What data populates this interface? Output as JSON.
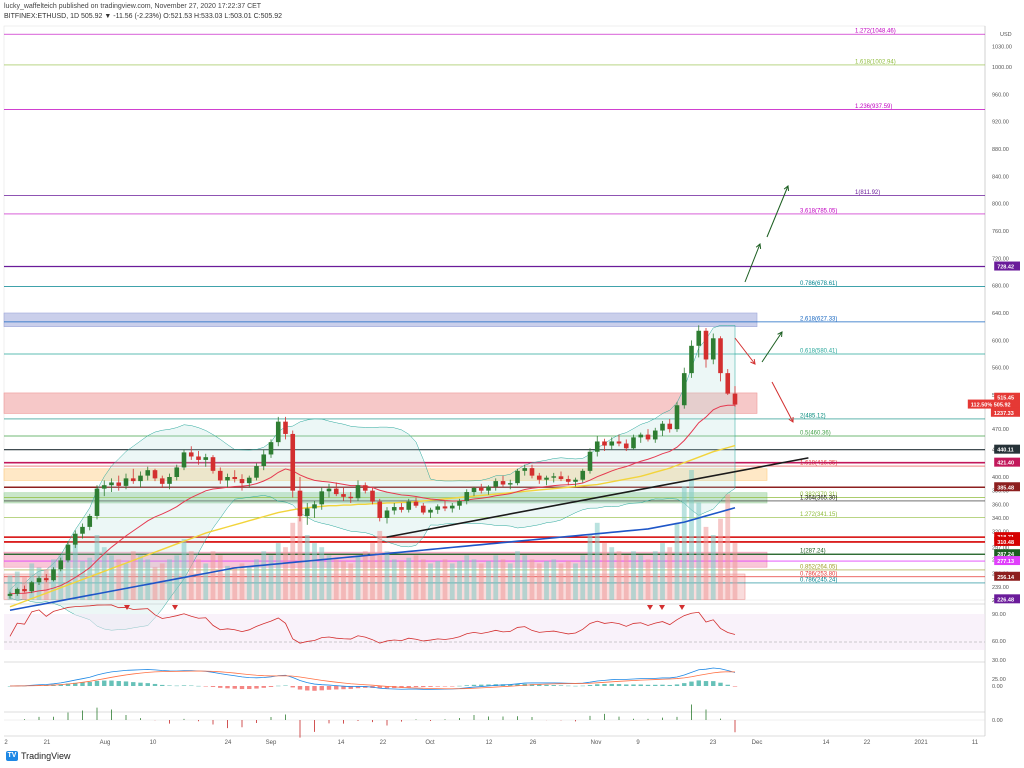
{
  "header": {
    "line1": "lucky_waffelteich published on tradingview.com, November 27, 2020 17:22:37 CET",
    "line2": "BITFINEX:ETHUSD, 1D 505.92 ▼ -11.56 (-2.23%) O:521.53 H:533.03 L:503.01 C:505.92"
  },
  "brand": {
    "name": "TradingView",
    "mark": "TV"
  },
  "price_axis": {
    "unit": "USD",
    "ticks": [
      "1030.00",
      "1000.00",
      "960.00",
      "920.00",
      "880.00",
      "840.00",
      "800.00",
      "760.00",
      "720.00",
      "680.00",
      "640.00",
      "600.00",
      "560.00",
      "520.00",
      "470.00",
      "440.00",
      "400.00",
      "380.00",
      "360.00",
      "340.00",
      "320.00",
      "297.00",
      "279.00",
      "259.00",
      "239.00",
      "220.00"
    ]
  },
  "time_axis": {
    "labels": [
      "2",
      "21",
      "Aug",
      "10",
      "24",
      "Sep",
      "14",
      "22",
      "Oct",
      "12",
      "26",
      "Nov",
      "9",
      "23",
      "Dec",
      "14",
      "22",
      "2021",
      "11"
    ]
  },
  "fib_levels": [
    {
      "label": "1.272(1048.46)",
      "price": 1048,
      "color": "#c000c0"
    },
    {
      "label": "1.618(1002.94)",
      "price": 1003,
      "color": "#8fbc3c"
    },
    {
      "label": "1.236(937.59)",
      "price": 938,
      "color": "#c000c0"
    },
    {
      "label": "1(811.92)",
      "price": 812,
      "color": "#6a1b9a"
    },
    {
      "label": "3.618(785.05)",
      "price": 785,
      "color": "#c000c0"
    },
    {
      "label": "0.786(678.61)",
      "price": 679,
      "color": "#00838f"
    },
    {
      "label": "2.618(627.33)",
      "price": 627,
      "color": "#1565c0"
    },
    {
      "label": "0.618(580.41)",
      "price": 580,
      "color": "#26a69a"
    },
    {
      "label": "2(485.12)",
      "price": 485,
      "color": "#00897b"
    },
    {
      "label": "0.5(460.36)",
      "price": 460,
      "color": "#43a047"
    },
    {
      "label": "1.618(416.35)",
      "price": 416,
      "color": "#e53935"
    },
    {
      "label": "0.382(370.31)",
      "price": 370,
      "color": "#8fbc3c"
    },
    {
      "label": "1.364(365.30)",
      "price": 365,
      "color": "#1a1a1a"
    },
    {
      "label": "1.272(341.15)",
      "price": 341,
      "color": "#8fbc3c"
    },
    {
      "label": "1(287.24)",
      "price": 287,
      "color": "#1b5e20"
    },
    {
      "label": "0.852(264.05)",
      "price": 264,
      "color": "#9e9d24"
    },
    {
      "label": "0.786(253.80)",
      "price": 254,
      "color": "#e53935"
    },
    {
      "label": "0.786(245.24)",
      "price": 245,
      "color": "#00838f"
    }
  ],
  "price_badges": [
    {
      "label": "728.42",
      "price": 708,
      "color": "#6a1b9a"
    },
    {
      "label": "515.45",
      "price": 516,
      "color": "#e53935"
    },
    {
      "label": "112.50% 505.92",
      "price": 506,
      "color": "#e53935"
    },
    {
      "label": "1237.33",
      "price": 494,
      "color": "#e53935"
    },
    {
      "label": "440.11",
      "price": 440,
      "color": "#263238"
    },
    {
      "label": "421.40",
      "price": 421,
      "color": "#c2185b"
    },
    {
      "label": "385.48",
      "price": 385,
      "color": "#8d1f1f"
    },
    {
      "label": "318.71",
      "price": 312,
      "color": "#d50000"
    },
    {
      "label": "310.48",
      "price": 305,
      "color": "#d50000"
    },
    {
      "label": "287.24",
      "price": 287,
      "color": "#1b5e20"
    },
    {
      "label": "277.13",
      "price": 277,
      "color": "#e040fb"
    },
    {
      "label": "256.14",
      "price": 254,
      "color": "#8d1f1f"
    },
    {
      "label": "226.48",
      "price": 221,
      "color": "#6a1b9a"
    }
  ],
  "rsi_axis": {
    "ticks": [
      "90.00",
      "60.00",
      "30.00"
    ]
  },
  "macd_axis": {
    "ticks": [
      "25.00",
      "0.00"
    ]
  },
  "ao_axis": {
    "ticks": [
      "0.00"
    ]
  },
  "chart_data": {
    "type": "candlestick",
    "symbol": "BITFINEX:ETHUSD",
    "interval": "1D",
    "ylim": [
      220,
      1060
    ],
    "candles": [
      [
        226,
        232,
        222,
        229
      ],
      [
        229,
        238,
        226,
        236
      ],
      [
        236,
        241,
        231,
        233
      ],
      [
        233,
        248,
        230,
        246
      ],
      [
        246,
        255,
        242,
        252
      ],
      [
        252,
        258,
        246,
        249
      ],
      [
        249,
        268,
        247,
        265
      ],
      [
        265,
        282,
        262,
        278
      ],
      [
        278,
        306,
        275,
        301
      ],
      [
        301,
        322,
        296,
        317
      ],
      [
        317,
        332,
        310,
        327
      ],
      [
        327,
        346,
        322,
        343
      ],
      [
        343,
        388,
        338,
        383
      ],
      [
        383,
        395,
        372,
        388
      ],
      [
        388,
        398,
        378,
        392
      ],
      [
        392,
        402,
        380,
        387
      ],
      [
        387,
        405,
        382,
        398
      ],
      [
        398,
        412,
        390,
        394
      ],
      [
        394,
        408,
        385,
        402
      ],
      [
        402,
        415,
        395,
        410
      ],
      [
        410,
        412,
        394,
        398
      ],
      [
        398,
        402,
        384,
        390
      ],
      [
        390,
        405,
        382,
        400
      ],
      [
        400,
        418,
        395,
        414
      ],
      [
        414,
        440,
        410,
        436
      ],
      [
        436,
        445,
        425,
        430
      ],
      [
        430,
        438,
        418,
        425
      ],
      [
        425,
        434,
        415,
        429
      ],
      [
        429,
        432,
        405,
        409
      ],
      [
        409,
        414,
        390,
        395
      ],
      [
        395,
        405,
        385,
        400
      ],
      [
        400,
        410,
        392,
        397
      ],
      [
        397,
        404,
        380,
        391
      ],
      [
        391,
        402,
        385,
        399
      ],
      [
        399,
        420,
        395,
        416
      ],
      [
        416,
        440,
        410,
        433
      ],
      [
        433,
        455,
        428,
        451
      ],
      [
        451,
        488,
        445,
        481
      ],
      [
        481,
        488,
        455,
        463
      ],
      [
        463,
        468,
        370,
        380
      ],
      [
        380,
        400,
        335,
        343
      ],
      [
        343,
        362,
        330,
        354
      ],
      [
        354,
        365,
        340,
        360
      ],
      [
        360,
        385,
        352,
        379
      ],
      [
        379,
        390,
        370,
        383
      ],
      [
        383,
        392,
        372,
        375
      ],
      [
        375,
        385,
        365,
        371
      ],
      [
        371,
        378,
        362,
        369
      ],
      [
        369,
        395,
        365,
        388
      ],
      [
        388,
        392,
        376,
        380
      ],
      [
        380,
        384,
        360,
        364
      ],
      [
        364,
        368,
        335,
        340
      ],
      [
        340,
        356,
        332,
        351
      ],
      [
        351,
        362,
        345,
        356
      ],
      [
        356,
        362,
        348,
        352
      ],
      [
        352,
        368,
        348,
        364
      ],
      [
        364,
        370,
        355,
        358
      ],
      [
        358,
        362,
        345,
        348
      ],
      [
        348,
        355,
        340,
        352
      ],
      [
        352,
        360,
        346,
        357
      ],
      [
        357,
        365,
        350,
        354
      ],
      [
        354,
        362,
        348,
        358
      ],
      [
        358,
        368,
        352,
        365
      ],
      [
        365,
        382,
        360,
        378
      ],
      [
        378,
        386,
        372,
        384
      ],
      [
        384,
        390,
        376,
        380
      ],
      [
        380,
        388,
        374,
        386
      ],
      [
        386,
        398,
        380,
        394
      ],
      [
        394,
        402,
        386,
        389
      ],
      [
        389,
        396,
        382,
        391
      ],
      [
        391,
        412,
        388,
        409
      ],
      [
        409,
        418,
        402,
        413
      ],
      [
        413,
        418,
        398,
        402
      ],
      [
        402,
        406,
        390,
        396
      ],
      [
        396,
        402,
        388,
        399
      ],
      [
        399,
        406,
        392,
        401
      ],
      [
        401,
        408,
        394,
        397
      ],
      [
        397,
        402,
        388,
        393
      ],
      [
        393,
        399,
        386,
        396
      ],
      [
        396,
        412,
        392,
        409
      ],
      [
        409,
        442,
        405,
        437
      ],
      [
        437,
        460,
        430,
        452
      ],
      [
        452,
        456,
        438,
        446
      ],
      [
        446,
        458,
        440,
        452
      ],
      [
        452,
        462,
        445,
        449
      ],
      [
        449,
        455,
        438,
        442
      ],
      [
        442,
        462,
        440,
        458
      ],
      [
        458,
        465,
        450,
        462
      ],
      [
        462,
        470,
        452,
        455
      ],
      [
        455,
        472,
        450,
        468
      ],
      [
        468,
        482,
        460,
        478
      ],
      [
        478,
        485,
        465,
        470
      ],
      [
        470,
        510,
        466,
        505
      ],
      [
        505,
        560,
        500,
        552
      ],
      [
        552,
        600,
        545,
        592
      ],
      [
        592,
        622,
        575,
        614
      ],
      [
        614,
        618,
        560,
        572
      ],
      [
        572,
        610,
        565,
        603
      ],
      [
        603,
        606,
        540,
        552
      ],
      [
        552,
        558,
        520,
        522
      ],
      [
        522,
        533,
        503,
        506
      ]
    ],
    "series": [
      {
        "name": "MA200",
        "values": [
          205,
          207,
          209,
          211,
          213,
          215,
          217,
          219,
          221,
          223,
          225,
          227,
          229,
          231,
          233,
          235,
          237,
          239,
          241,
          243,
          245,
          247,
          249,
          251,
          253,
          255,
          257,
          259,
          261,
          263,
          265,
          267,
          268,
          269,
          270,
          271,
          272,
          273,
          274,
          275,
          276,
          277,
          278,
          279,
          280,
          281,
          282,
          283,
          284,
          285,
          286,
          287,
          288,
          289,
          290,
          291,
          292,
          293,
          294,
          295,
          296,
          297,
          298,
          299,
          300,
          301,
          302,
          303,
          304,
          305,
          306,
          307,
          308,
          309,
          310,
          311,
          312,
          313,
          314,
          315,
          316,
          317,
          318,
          319,
          320,
          321,
          322,
          323,
          324,
          326,
          328,
          330,
          332,
          334,
          337,
          340,
          343,
          346,
          349,
          352,
          355
        ]
      },
      {
        "name": "MA50",
        "values": [
          210,
          214,
          218,
          222,
          226,
          230,
          234,
          238,
          242,
          246,
          250,
          254,
          258,
          262,
          266,
          270,
          274,
          278,
          282,
          286,
          290,
          294,
          298,
          302,
          306,
          310,
          314,
          318,
          321,
          324,
          327,
          330,
          333,
          336,
          339,
          342,
          345,
          348,
          350,
          352,
          354,
          355,
          356,
          357,
          358,
          358,
          359,
          359,
          360,
          360,
          361,
          361,
          362,
          362,
          363,
          363,
          364,
          365,
          366,
          367,
          368,
          369,
          370,
          371,
          372,
          373,
          374,
          375,
          376,
          377,
          378,
          379,
          380,
          381,
          382,
          383,
          384,
          385,
          386,
          387,
          388,
          389,
          391,
          393,
          395,
          397,
          399,
          401,
          404,
          407,
          410,
          413,
          417,
          421,
          425,
          429,
          433,
          437,
          440,
          443,
          446
        ]
      }
    ],
    "trendlines": [
      {
        "from": [
          0.39,
          312
        ],
        "to": [
          0.82,
          428
        ],
        "color": "#1a1a1a"
      }
    ],
    "volume": [
      30,
      35,
      28,
      45,
      40,
      38,
      50,
      55,
      60,
      70,
      48,
      52,
      80,
      65,
      55,
      50,
      45,
      60,
      55,
      50,
      40,
      45,
      50,
      55,
      75,
      60,
      50,
      45,
      60,
      55,
      42,
      40,
      45,
      40,
      50,
      60,
      55,
      70,
      65,
      95,
      110,
      80,
      70,
      65,
      55,
      50,
      48,
      45,
      55,
      60,
      70,
      85,
      60,
      50,
      48,
      52,
      55,
      50,
      45,
      48,
      50,
      45,
      48,
      55,
      50,
      45,
      48,
      55,
      50,
      45,
      60,
      55,
      50,
      45,
      48,
      50,
      45,
      48,
      45,
      55,
      80,
      95,
      70,
      65,
      60,
      55,
      60,
      55,
      50,
      60,
      70,
      65,
      95,
      140,
      160,
      120,
      90,
      80,
      100,
      130,
      70
    ]
  }
}
